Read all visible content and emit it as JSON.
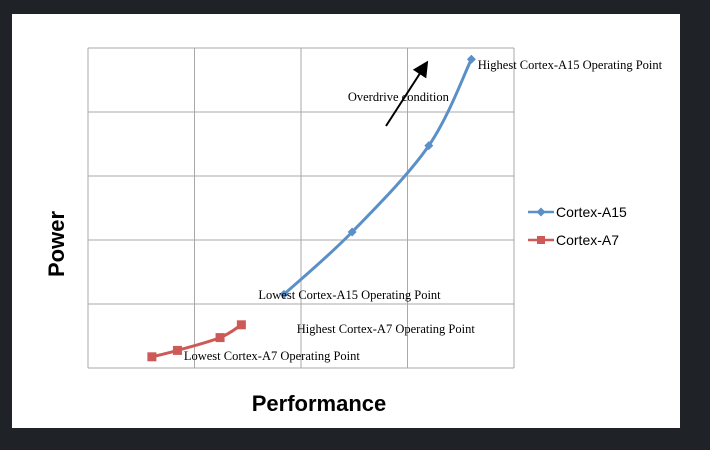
{
  "chart_data": {
    "type": "line",
    "xlabel": "Performance",
    "ylabel": "Power",
    "grid": true,
    "legend_position": "right",
    "xlim": [
      0,
      10
    ],
    "ylim": [
      0,
      10
    ],
    "series": [
      {
        "name": "Cortex-A15",
        "color": "#5b8fc7",
        "marker": "diamond",
        "points": [
          [
            4.6,
            2.3
          ],
          [
            6.2,
            4.25
          ],
          [
            8.0,
            6.95
          ],
          [
            9.0,
            9.65
          ]
        ]
      },
      {
        "name": "Cortex-A7",
        "color": "#cd5a57",
        "marker": "square",
        "points": [
          [
            1.5,
            0.35
          ],
          [
            2.1,
            0.55
          ],
          [
            3.1,
            0.95
          ],
          [
            3.6,
            1.35
          ]
        ]
      }
    ],
    "annotations": [
      {
        "text": "Highest Cortex-A15 Operating Point",
        "x": 9.15,
        "y": 9.35
      },
      {
        "text": "Lowest Cortex-A15 Operating Point",
        "x": 4.0,
        "y": 2.15
      },
      {
        "text": "Highest Cortex-A7 Operating Point",
        "x": 4.9,
        "y": 1.1
      },
      {
        "text": "Lowest Cortex-A7 Operating Point",
        "x": 2.25,
        "y": 0.25
      },
      {
        "text": "Overdrive condition",
        "x": 6.1,
        "y": 8.35
      }
    ]
  }
}
